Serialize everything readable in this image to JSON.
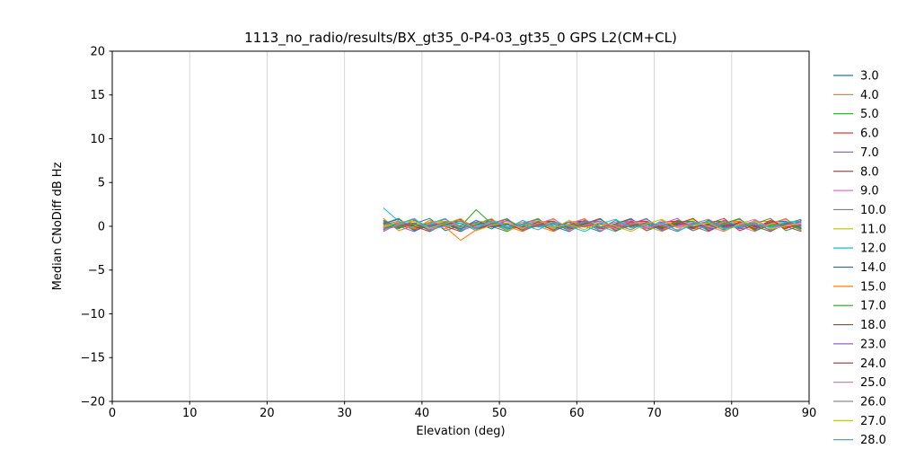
{
  "chart_data": {
    "type": "line",
    "title": "1113_no_radio/results/BX_gt35_0-P4-03_gt35_0 GPS L2(CM+CL)",
    "xlabel": "Elevation (deg)",
    "ylabel": "Median CNoDiff dB Hz",
    "xlim": [
      0,
      90
    ],
    "ylim": [
      -20,
      20
    ],
    "xticks": [
      0,
      10,
      20,
      30,
      40,
      50,
      60,
      70,
      80,
      90
    ],
    "yticks": [
      -20,
      -15,
      -10,
      -5,
      0,
      5,
      10,
      15,
      20
    ],
    "grid": "vertical-only",
    "legend_position": "right-outside",
    "colors": [
      "#1f77b4",
      "#ff7f0e",
      "#2ca02c",
      "#d62728",
      "#9467bd",
      "#8c564b",
      "#e377c2",
      "#7f7f7f",
      "#bcbd22",
      "#17becf"
    ],
    "grid_color": "#cccccc",
    "x": [
      35,
      37,
      39,
      41,
      43,
      45,
      47,
      49,
      51,
      53,
      55,
      57,
      59,
      61,
      63,
      65,
      67,
      69,
      71,
      73,
      75,
      77,
      79,
      81,
      83,
      85,
      87,
      89
    ],
    "series": [
      {
        "name": "3.0",
        "values": [
          0.6,
          -0.2,
          0.3,
          0.9,
          -0.5,
          0.1,
          0.4,
          -0.3,
          0.7,
          -0.1,
          0.2,
          -0.4,
          0.5,
          0.0,
          -0.6,
          0.3,
          0.8,
          -0.2,
          0.1,
          0.4,
          -0.5,
          0.2,
          0.6,
          -0.3,
          0.0,
          0.3,
          -0.1,
          0.5
        ]
      },
      {
        "name": "4.0",
        "values": [
          0.9,
          -0.5,
          0.1,
          0.4,
          -0.3,
          0.7,
          -0.1,
          0.2,
          -0.4,
          0.5,
          0.0,
          -0.6,
          0.3,
          0.8,
          -0.2,
          0.1,
          0.4,
          -0.5,
          0.2,
          0.6,
          -0.3,
          0.0,
          0.3,
          -0.1,
          0.5,
          0.6,
          -0.2,
          0.3
        ]
      },
      {
        "name": "5.0",
        "values": [
          0.4,
          -0.3,
          0.7,
          -0.1,
          0.2,
          -0.4,
          0.5,
          0.0,
          -0.6,
          0.3,
          0.8,
          -0.2,
          0.1,
          0.4,
          -0.5,
          0.2,
          0.6,
          -0.3,
          0.0,
          0.3,
          -0.1,
          0.5,
          0.6,
          -0.2,
          0.3,
          0.9,
          -0.5,
          0.1
        ]
      },
      {
        "name": "6.0",
        "values": [
          -0.1,
          0.2,
          -0.4,
          0.5,
          0.0,
          -0.6,
          0.3,
          0.8,
          -0.2,
          0.1,
          0.4,
          -0.5,
          0.2,
          0.6,
          -0.3,
          0.0,
          0.3,
          -0.1,
          0.5,
          0.6,
          -0.2,
          0.3,
          0.9,
          -0.5,
          0.1,
          0.4,
          -0.3,
          0.7
        ]
      },
      {
        "name": "7.0",
        "values": [
          0.5,
          0.0,
          -0.6,
          0.3,
          0.8,
          -0.2,
          0.1,
          0.4,
          -0.5,
          0.2,
          0.6,
          -0.3,
          0.0,
          0.3,
          -0.1,
          0.5,
          0.6,
          -0.2,
          0.3,
          0.9,
          -0.5,
          0.1,
          0.4,
          -0.3,
          0.7,
          -0.1,
          0.2,
          -0.4
        ]
      },
      {
        "name": "8.0",
        "values": [
          0.3,
          0.8,
          -0.2,
          0.1,
          0.4,
          -0.5,
          0.2,
          0.6,
          -0.3,
          0.0,
          0.3,
          -0.1,
          0.5,
          0.6,
          -0.2,
          0.3,
          0.9,
          -0.5,
          0.1,
          0.4,
          -0.3,
          0.7,
          -0.1,
          0.2,
          -0.4,
          0.5,
          0.0,
          -0.6
        ]
      },
      {
        "name": "9.0",
        "values": [
          0.1,
          0.4,
          -0.5,
          0.2,
          0.6,
          -0.3,
          0.0,
          0.3,
          -0.1,
          0.5,
          0.6,
          -0.2,
          0.3,
          0.9,
          -0.5,
          0.1,
          0.4,
          -0.3,
          0.7,
          -0.1,
          0.2,
          -0.4,
          0.5,
          0.0,
          -0.6,
          0.3,
          0.8,
          -0.2
        ]
      },
      {
        "name": "10.0",
        "values": [
          0.2,
          0.6,
          -0.3,
          0.0,
          0.3,
          -0.1,
          0.5,
          0.6,
          -0.2,
          0.3,
          0.9,
          -0.5,
          0.1,
          0.4,
          -0.3,
          0.7,
          -0.1,
          0.2,
          -0.4,
          0.5,
          0.0,
          -0.6,
          0.3,
          0.8,
          -0.2,
          0.1,
          0.4,
          -0.5
        ]
      },
      {
        "name": "11.0",
        "values": [
          0.0,
          0.3,
          -0.1,
          0.5,
          0.6,
          -0.2,
          0.3,
          0.9,
          -0.5,
          0.1,
          0.4,
          -0.3,
          0.7,
          -0.1,
          0.2,
          -0.4,
          0.5,
          0.0,
          -0.6,
          0.3,
          0.8,
          -0.2,
          0.1,
          0.4,
          -0.5,
          0.2,
          0.6,
          -0.3
        ]
      },
      {
        "name": "12.0",
        "values": [
          2.1,
          0.6,
          -0.2,
          0.3,
          0.9,
          -0.5,
          0.1,
          0.4,
          -0.3,
          0.7,
          -0.1,
          0.2,
          -0.4,
          0.5,
          0.0,
          -0.6,
          0.3,
          0.8,
          -0.2,
          0.1,
          0.4,
          -0.5,
          0.2,
          0.6,
          -0.3,
          0.0,
          0.3,
          -0.1
        ]
      },
      {
        "name": "14.0",
        "values": [
          0.3,
          0.9,
          -0.5,
          0.1,
          0.4,
          -0.3,
          0.7,
          -0.1,
          0.2,
          -0.4,
          0.5,
          0.0,
          -0.6,
          0.3,
          0.8,
          -0.2,
          0.1,
          0.4,
          -0.5,
          0.2,
          0.6,
          -0.3,
          0.0,
          0.3,
          -0.1,
          0.5,
          0.6,
          -0.2
        ]
      },
      {
        "name": "15.0",
        "values": [
          0.1,
          0.4,
          -0.3,
          0.7,
          -0.1,
          -1.6,
          -0.4,
          0.5,
          0.0,
          -0.6,
          0.3,
          0.8,
          -0.2,
          0.1,
          0.4,
          -0.5,
          0.2,
          0.6,
          -0.3,
          0.0,
          0.3,
          -0.1,
          0.5,
          0.6,
          -0.2,
          0.3,
          0.9,
          -0.5
        ]
      },
      {
        "name": "17.0",
        "values": [
          0.7,
          -0.1,
          0.2,
          -0.4,
          0.5,
          0.0,
          1.9,
          0.3,
          0.8,
          -0.2,
          0.1,
          0.4,
          -0.5,
          0.2,
          0.6,
          -0.3,
          0.0,
          0.3,
          -0.1,
          0.5,
          0.6,
          -0.2,
          0.3,
          0.9,
          -0.5,
          0.1,
          0.4,
          -0.3
        ]
      },
      {
        "name": "18.0",
        "values": [
          -0.4,
          0.5,
          0.0,
          -0.6,
          0.3,
          0.8,
          -0.2,
          0.1,
          0.4,
          -0.5,
          0.2,
          0.6,
          -0.3,
          0.0,
          0.3,
          -0.1,
          0.5,
          0.6,
          -0.2,
          0.3,
          0.9,
          -0.5,
          0.1,
          0.4,
          -0.3,
          0.7,
          -0.1,
          0.2
        ]
      },
      {
        "name": "23.0",
        "values": [
          -0.6,
          0.3,
          0.8,
          -0.2,
          0.1,
          0.4,
          -0.5,
          0.2,
          0.6,
          -0.3,
          0.0,
          0.3,
          -0.1,
          0.5,
          0.6,
          -0.2,
          0.3,
          0.9,
          -0.5,
          0.1,
          0.4,
          -0.3,
          0.7,
          -0.1,
          0.2,
          -0.4,
          0.5,
          0.0
        ]
      },
      {
        "name": "24.0",
        "values": [
          -0.2,
          0.1,
          0.4,
          -0.5,
          0.2,
          0.6,
          -0.3,
          0.0,
          0.3,
          -0.1,
          0.5,
          0.6,
          -0.2,
          0.3,
          0.9,
          -0.5,
          0.1,
          0.4,
          -0.3,
          0.7,
          -0.1,
          0.2,
          -0.4,
          0.5,
          0.0,
          -0.6,
          0.3,
          0.8
        ]
      },
      {
        "name": "25.0",
        "values": [
          -0.5,
          0.2,
          0.6,
          -0.3,
          0.0,
          0.3,
          -0.1,
          0.5,
          0.6,
          -0.2,
          0.3,
          0.9,
          -0.5,
          0.1,
          0.4,
          -0.3,
          0.7,
          -0.1,
          0.2,
          -0.4,
          0.5,
          0.0,
          -0.6,
          0.3,
          0.8,
          -0.2,
          0.1,
          0.4
        ]
      },
      {
        "name": "26.0",
        "values": [
          -0.3,
          0.0,
          0.3,
          -0.1,
          0.5,
          0.6,
          -0.2,
          0.3,
          0.9,
          -0.5,
          0.1,
          0.4,
          -0.3,
          0.7,
          -0.1,
          0.2,
          -0.4,
          0.5,
          0.0,
          -0.6,
          0.3,
          0.8,
          -0.2,
          0.1,
          0.4,
          -0.5,
          0.2,
          0.6
        ]
      },
      {
        "name": "27.0",
        "values": [
          -0.1,
          0.5,
          0.6,
          -0.2,
          0.3,
          0.9,
          -0.5,
          0.1,
          0.4,
          -0.3,
          0.7,
          -0.1,
          0.2,
          -0.4,
          0.5,
          0.0,
          -0.6,
          0.3,
          0.8,
          -0.2,
          0.1,
          0.4,
          -0.5,
          0.2,
          0.6,
          -0.3,
          0.0,
          0.3
        ]
      },
      {
        "name": "28.0",
        "values": [
          -0.2,
          0.3,
          0.9,
          -0.5,
          0.1,
          0.4,
          -0.3,
          0.7,
          -0.1,
          0.2,
          -0.4,
          0.5,
          0.0,
          -0.6,
          0.3,
          0.8,
          -0.2,
          0.1,
          0.4,
          -0.5,
          0.2,
          0.6,
          -0.3,
          0.0,
          0.3,
          -0.1,
          0.5,
          0.6
        ]
      }
    ]
  }
}
